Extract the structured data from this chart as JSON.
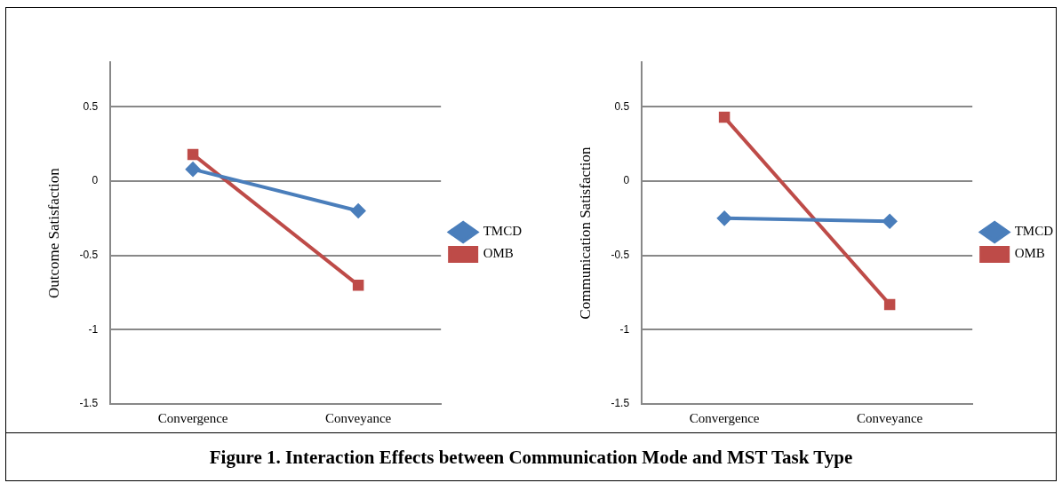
{
  "chart_data": [
    {
      "type": "line",
      "ylabel": "Outcome Satisfaction",
      "categories": [
        "Convergence",
        "Conveyance"
      ],
      "ylim": [
        -1.5,
        0.8
      ],
      "yticks": [
        -1.5,
        -1,
        -0.5,
        0,
        0.5
      ],
      "grid": "y",
      "legend": "right",
      "line_style": "solid",
      "series": [
        {
          "name": "TMCD",
          "color": "#4a7ebb",
          "marker": "diamond",
          "values": [
            0.08,
            -0.2
          ]
        },
        {
          "name": "OMB",
          "color": "#be4b48",
          "marker": "square",
          "values": [
            0.18,
            -0.7
          ]
        }
      ],
      "annotations": [
        "Figure 1.  Interaction Effects between Communication Mode and MST Task Type"
      ]
    },
    {
      "type": "line",
      "ylabel": "Communication Satisfaction",
      "categories": [
        "Convergence",
        "Conveyance"
      ],
      "ylim": [
        -1.5,
        0.8
      ],
      "yticks": [
        -1.5,
        -1,
        -0.5,
        0,
        0.5
      ],
      "grid": "y",
      "legend": "right",
      "line_style": "solid",
      "series": [
        {
          "name": "TMCD",
          "color": "#4a7ebb",
          "marker": "diamond",
          "values": [
            -0.25,
            -0.27
          ]
        },
        {
          "name": "OMB",
          "color": "#be4b48",
          "marker": "square",
          "values": [
            0.43,
            -0.83
          ]
        }
      ]
    }
  ]
}
